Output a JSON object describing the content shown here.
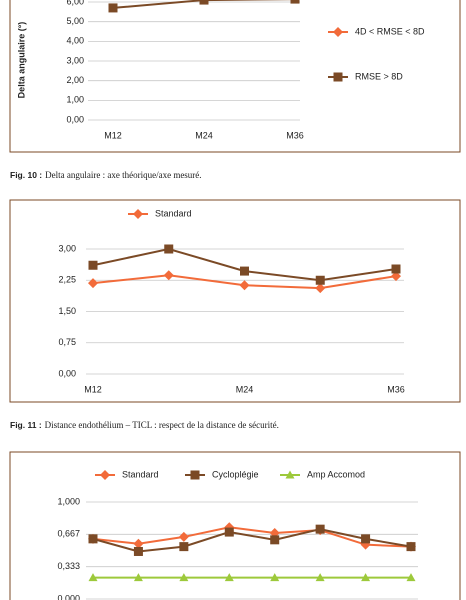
{
  "chart_data": [
    {
      "type": "line",
      "ylabel": "Delta angulaire (°)",
      "categories": [
        "M12",
        "M24",
        "M36"
      ],
      "series": [
        {
          "name": "4D < RMSE < 8D",
          "color": "#f26b3a",
          "marker": "diamond",
          "values": [
            null,
            null,
            null
          ]
        },
        {
          "name": "RMSE > 8D",
          "color": "#7b4a26",
          "marker": "square",
          "values": [
            5.7,
            6.1,
            6.15
          ]
        }
      ],
      "ylim": [
        0,
        6.5
      ],
      "yticks": [
        {
          "value": 0,
          "label": "0,00"
        },
        {
          "value": 1,
          "label": "1,00"
        },
        {
          "value": 2,
          "label": "2,00"
        },
        {
          "value": 3,
          "label": "3,00"
        },
        {
          "value": 4,
          "label": "4,00"
        },
        {
          "value": 5,
          "label": "5,00"
        },
        {
          "value": 6,
          "label": "6,00"
        }
      ],
      "grid": true,
      "legend": "right",
      "caption_label": "Fig. 10 :",
      "caption": "Delta angulaire : axe théorique/axe mesuré."
    },
    {
      "type": "line",
      "categories": [
        "M12",
        null,
        "M24",
        null,
        "M36"
      ],
      "series": [
        {
          "name": "Standard",
          "color": "#f26b3a",
          "marker": "diamond",
          "values": [
            2.18,
            2.37,
            2.13,
            2.06,
            2.35
          ]
        },
        {
          "color": "#7b4a26",
          "marker": "square",
          "values": [
            2.61,
            3.0,
            2.47,
            2.25,
            2.52
          ]
        }
      ],
      "ylim": [
        0,
        3
      ],
      "yticks": [
        {
          "value": 0,
          "label": "0,00"
        },
        {
          "value": 0.75,
          "label": "0,75"
        },
        {
          "value": 1.5,
          "label": "1,50"
        },
        {
          "value": 2.25,
          "label": "2,25"
        },
        {
          "value": 3,
          "label": "3,00"
        }
      ],
      "grid": true,
      "legend": "top",
      "caption_label": "Fig. 11 :",
      "caption": "Distance endothélium – TICL : respect de la distance de sécurité."
    },
    {
      "type": "line",
      "categories": [
        null,
        null,
        null,
        null,
        null,
        null,
        null,
        null
      ],
      "series": [
        {
          "name": "Standard",
          "color": "#f26b3a",
          "marker": "diamond",
          "values": [
            0.62,
            0.57,
            0.64,
            0.74,
            0.68,
            0.71,
            0.56,
            0.54
          ]
        },
        {
          "name": "Cycloplégie",
          "color": "#7b4a26",
          "marker": "square",
          "values": [
            0.62,
            0.49,
            0.54,
            0.69,
            0.61,
            0.72,
            0.62,
            0.54
          ]
        },
        {
          "name": "Amp Accomod",
          "color": "#9dc93b",
          "marker": "triangle",
          "values": [
            0.22,
            0.22,
            0.22,
            0.22,
            0.22,
            0.22,
            0.22,
            0.22
          ]
        }
      ],
      "ylim": [
        0,
        1
      ],
      "yticks": [
        {
          "value": 0,
          "label": "0,000"
        },
        {
          "value": 0.333,
          "label": "0,333"
        },
        {
          "value": 0.667,
          "label": "0,667"
        },
        {
          "value": 1,
          "label": "1,000"
        }
      ],
      "grid": true,
      "legend": "top"
    }
  ]
}
